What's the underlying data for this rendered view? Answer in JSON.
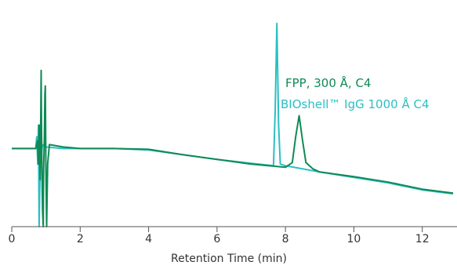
{
  "chart_data": {
    "type": "line",
    "title": "",
    "xlabel": "Retention Time (min)",
    "ylabel": "",
    "xlim": [
      0,
      12.9
    ],
    "ylim": [
      -1.0,
      1.8
    ],
    "x_ticks": [
      0,
      2,
      4,
      6,
      8,
      10,
      12
    ],
    "grid": false,
    "legend": "annotation right of peaks",
    "series": [
      {
        "name": "FPP, 300 Å, C4",
        "color": "#0f8a55",
        "points": [
          [
            0,
            0
          ],
          [
            0.7,
            0
          ],
          [
            0.75,
            0.1
          ],
          [
            0.78,
            -0.2
          ],
          [
            0.8,
            0.3
          ],
          [
            0.83,
            -0.4
          ],
          [
            0.85,
            0.5
          ],
          [
            0.86,
            1.0
          ],
          [
            0.87,
            0.2
          ],
          [
            0.89,
            -0.5
          ],
          [
            0.9,
            -0.8
          ],
          [
            0.92,
            -1.0
          ],
          [
            0.93,
            -0.3
          ],
          [
            0.95,
            0.1
          ],
          [
            0.97,
            0.7
          ],
          [
            0.98,
            0.8
          ],
          [
            1.0,
            -0.3
          ],
          [
            1.02,
            -1.0
          ],
          [
            1.05,
            -0.2
          ],
          [
            1.1,
            0.05
          ],
          [
            1.5,
            0.02
          ],
          [
            2,
            0
          ],
          [
            3,
            0
          ],
          [
            4,
            -0.01
          ],
          [
            5,
            -0.08
          ],
          [
            6,
            -0.14
          ],
          [
            7,
            -0.2
          ],
          [
            8,
            -0.24
          ],
          [
            8.2,
            -0.18
          ],
          [
            8.3,
            0.15
          ],
          [
            8.4,
            0.42
          ],
          [
            8.5,
            0.1
          ],
          [
            8.6,
            -0.18
          ],
          [
            8.8,
            -0.26
          ],
          [
            9,
            -0.3
          ],
          [
            10,
            -0.36
          ],
          [
            11,
            -0.43
          ],
          [
            12,
            -0.52
          ],
          [
            12.9,
            -0.57
          ]
        ]
      },
      {
        "name": "BIOshell™ IgG 1000 Å C4",
        "color": "#2bbfc4",
        "points": [
          [
            0,
            0
          ],
          [
            0.7,
            0
          ],
          [
            0.73,
            0.15
          ],
          [
            0.76,
            -0.2
          ],
          [
            0.78,
            0.3
          ],
          [
            0.8,
            -1.0
          ],
          [
            0.82,
            -0.5
          ],
          [
            0.84,
            0.2
          ],
          [
            0.86,
            -0.1
          ],
          [
            0.9,
            0.05
          ],
          [
            1.0,
            0.02
          ],
          [
            1.5,
            0
          ],
          [
            2,
            0
          ],
          [
            3,
            0
          ],
          [
            4,
            -0.02
          ],
          [
            5,
            -0.08
          ],
          [
            6,
            -0.14
          ],
          [
            7,
            -0.19
          ],
          [
            7.65,
            -0.22
          ],
          [
            7.7,
            0.5
          ],
          [
            7.75,
            1.6
          ],
          [
            7.8,
            0.3
          ],
          [
            7.85,
            -0.2
          ],
          [
            8,
            -0.22
          ],
          [
            9,
            -0.3
          ],
          [
            10,
            -0.37
          ],
          [
            11,
            -0.44
          ],
          [
            12,
            -0.53
          ],
          [
            12.9,
            -0.58
          ]
        ]
      }
    ]
  }
}
